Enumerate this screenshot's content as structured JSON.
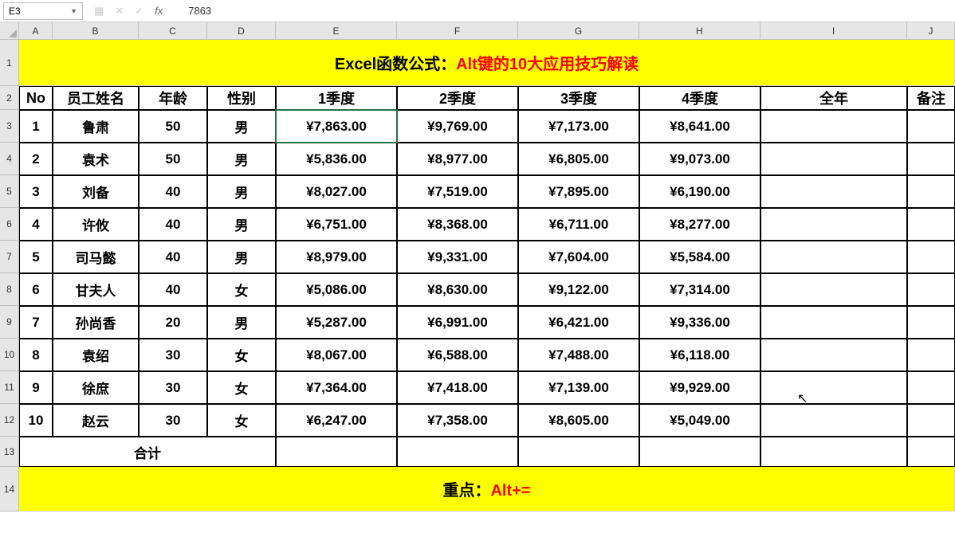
{
  "formula_bar": {
    "cell_ref": "E3",
    "value": "7863",
    "fx_label": "fx"
  },
  "columns": [
    "A",
    "B",
    "C",
    "D",
    "E",
    "F",
    "G",
    "H",
    "I",
    "J"
  ],
  "row_numbers": [
    "1",
    "2",
    "3",
    "4",
    "5",
    "6",
    "7",
    "8",
    "9",
    "10",
    "11",
    "12",
    "13",
    "14"
  ],
  "title": {
    "prefix": "Excel函数公式：",
    "highlight": "Alt键的10大应用技巧解读"
  },
  "headers": [
    "No",
    "员工姓名",
    "年龄",
    "性别",
    "1季度",
    "2季度",
    "3季度",
    "4季度",
    "全年",
    "备注"
  ],
  "rows": [
    {
      "no": "1",
      "name": "鲁肃",
      "age": "50",
      "gender": "男",
      "q1": "¥7,863.00",
      "q2": "¥9,769.00",
      "q3": "¥7,173.00",
      "q4": "¥8,641.00",
      "year": "",
      "note": ""
    },
    {
      "no": "2",
      "name": "袁术",
      "age": "50",
      "gender": "男",
      "q1": "¥5,836.00",
      "q2": "¥8,977.00",
      "q3": "¥6,805.00",
      "q4": "¥9,073.00",
      "year": "",
      "note": ""
    },
    {
      "no": "3",
      "name": "刘备",
      "age": "40",
      "gender": "男",
      "q1": "¥8,027.00",
      "q2": "¥7,519.00",
      "q3": "¥7,895.00",
      "q4": "¥6,190.00",
      "year": "",
      "note": ""
    },
    {
      "no": "4",
      "name": "许攸",
      "age": "40",
      "gender": "男",
      "q1": "¥6,751.00",
      "q2": "¥8,368.00",
      "q3": "¥6,711.00",
      "q4": "¥8,277.00",
      "year": "",
      "note": ""
    },
    {
      "no": "5",
      "name": "司马懿",
      "age": "40",
      "gender": "男",
      "q1": "¥8,979.00",
      "q2": "¥9,331.00",
      "q3": "¥7,604.00",
      "q4": "¥5,584.00",
      "year": "",
      "note": ""
    },
    {
      "no": "6",
      "name": "甘夫人",
      "age": "40",
      "gender": "女",
      "q1": "¥5,086.00",
      "q2": "¥8,630.00",
      "q3": "¥9,122.00",
      "q4": "¥7,314.00",
      "year": "",
      "note": ""
    },
    {
      "no": "7",
      "name": "孙尚香",
      "age": "20",
      "gender": "男",
      "q1": "¥5,287.00",
      "q2": "¥6,991.00",
      "q3": "¥6,421.00",
      "q4": "¥9,336.00",
      "year": "",
      "note": ""
    },
    {
      "no": "8",
      "name": "袁绍",
      "age": "30",
      "gender": "女",
      "q1": "¥8,067.00",
      "q2": "¥6,588.00",
      "q3": "¥7,488.00",
      "q4": "¥6,118.00",
      "year": "",
      "note": ""
    },
    {
      "no": "9",
      "name": "徐庶",
      "age": "30",
      "gender": "女",
      "q1": "¥7,364.00",
      "q2": "¥7,418.00",
      "q3": "¥7,139.00",
      "q4": "¥9,929.00",
      "year": "",
      "note": ""
    },
    {
      "no": "10",
      "name": "赵云",
      "age": "30",
      "gender": "女",
      "q1": "¥6,247.00",
      "q2": "¥7,358.00",
      "q3": "¥8,605.00",
      "q4": "¥5,049.00",
      "year": "",
      "note": ""
    }
  ],
  "total_label": "合计",
  "footer": {
    "prefix": "重点：",
    "highlight": "Alt+="
  },
  "cursor_icon": "↖"
}
